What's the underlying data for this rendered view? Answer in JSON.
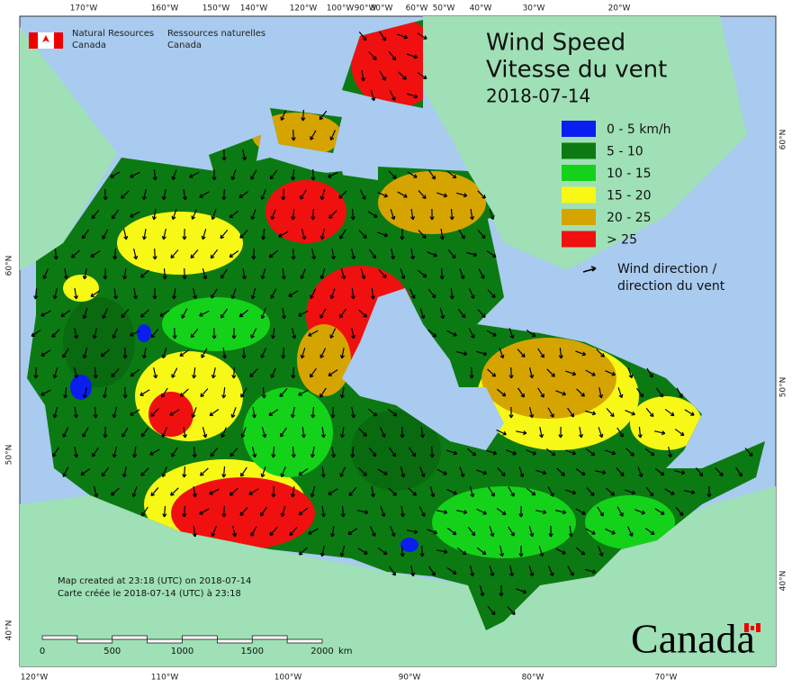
{
  "header": {
    "agency_en": [
      "Natural Resources",
      "Canada"
    ],
    "agency_fr": [
      "Ressources naturelles",
      "Canada"
    ]
  },
  "title": [
    "Wind Speed",
    "Vitesse du vent",
    "2018-07-14"
  ],
  "legend": {
    "entries": [
      {
        "label": "0 - 5 km/h",
        "color": "#0a1ef0"
      },
      {
        "label": "5 - 10",
        "color": "#0c7a12"
      },
      {
        "label": "10 - 15",
        "color": "#14d21a"
      },
      {
        "label": "15 - 20",
        "color": "#f8f816"
      },
      {
        "label": "20 - 25",
        "color": "#d6a400"
      },
      {
        "label": "> 25",
        "color": "#f01010"
      }
    ],
    "arrow_label": [
      "Wind direction /",
      "direction du vent"
    ]
  },
  "graticule": {
    "top": [
      "170°W",
      "160°W",
      "150°W",
      "140°W",
      "120°W",
      "100°W",
      "90°W",
      "80°W",
      "60°W",
      "50°W",
      "40°W",
      "30°W",
      "20°W"
    ],
    "bottom": [
      "120°W",
      "110°W",
      "100°W",
      "90°W",
      "80°W",
      "70°W"
    ],
    "left": [
      "60°N",
      "50°N",
      "40°N"
    ],
    "right": [
      "60°N",
      "50°N",
      "40°N"
    ]
  },
  "footnote": [
    "Map created at 23:18 (UTC) on 2018-07-14",
    "Carte créée le 2018-07-14 (UTC) à 23:18"
  ],
  "scale_bar": {
    "labels": [
      0,
      500,
      1000,
      1500,
      2000
    ],
    "unit": "km"
  },
  "wordmark": "Canada"
}
